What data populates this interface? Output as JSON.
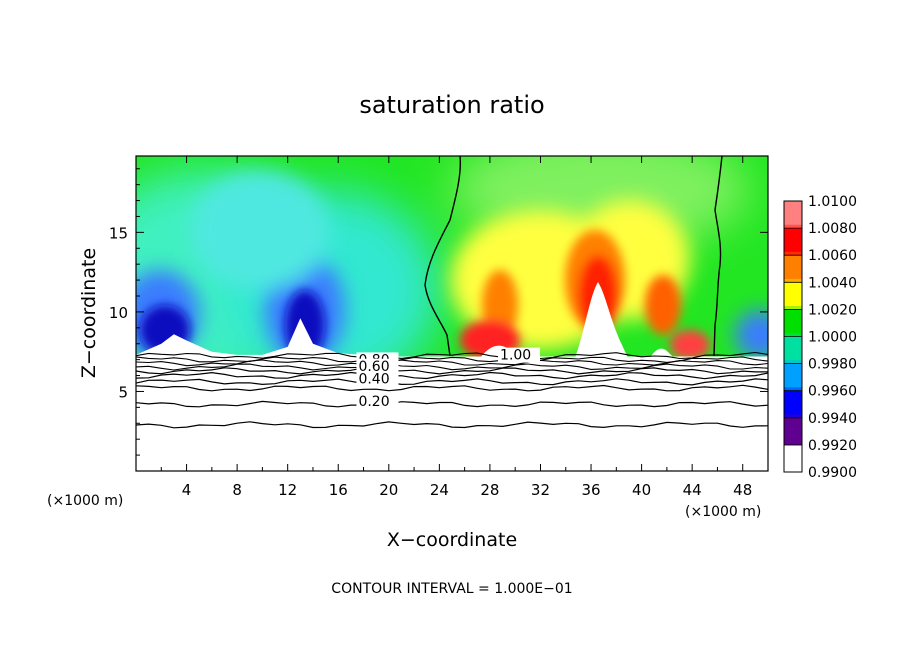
{
  "chart_data": {
    "type": "heatmap",
    "title": "saturation ratio",
    "xlabel": "X−coordinate",
    "ylabel": "Z−coordinate",
    "x_unit_left": "(×1000 m)",
    "x_unit_right": "(×1000 m)",
    "footer": "CONTOUR INTERVAL = 1.000E−01",
    "xlim": [
      0,
      50
    ],
    "ylim": [
      0,
      19.8
    ],
    "x_ticks": [
      4,
      8,
      12,
      16,
      20,
      24,
      28,
      32,
      36,
      40,
      44,
      48
    ],
    "y_ticks": [
      5,
      10,
      15
    ],
    "colorbar": {
      "min": 0.99,
      "max": 1.01,
      "labels": [
        "1.0100",
        "1.0080",
        "1.0060",
        "1.0040",
        "1.0020",
        "1.0000",
        "0.9980",
        "0.9960",
        "0.9940",
        "0.9920",
        "0.9900"
      ],
      "colors": [
        "#ff8080",
        "#ff0000",
        "#ff8000",
        "#ffff00",
        "#00e000",
        "#00e0a0",
        "#00a0ff",
        "#0000ff",
        "#600090"
      ]
    },
    "cloud_base_z": 7.2,
    "terrain_x": [
      0,
      2,
      3,
      4,
      6,
      8,
      10,
      12,
      13,
      14,
      16,
      18,
      20,
      50
    ],
    "terrain_top": [
      7.3,
      8.0,
      8.6,
      8.2,
      7.5,
      7.3,
      7.3,
      7.8,
      9.6,
      8.0,
      7.4,
      7.3,
      7.2,
      7.2
    ],
    "contour_labels": [
      {
        "text": "1.00",
        "x": 28.8,
        "z": 7.0
      },
      {
        "text": "0.80",
        "x": 17.6,
        "z": 6.7
      },
      {
        "text": "0.60",
        "x": 17.6,
        "z": 6.3
      },
      {
        "text": "0.40",
        "x": 17.6,
        "z": 5.5
      },
      {
        "text": "0.20",
        "x": 17.6,
        "z": 4.1
      }
    ],
    "contour_levels_z": [
      7.25,
      7.0,
      6.8,
      6.55,
      6.3,
      6.0,
      5.6,
      5.2,
      4.2,
      2.9
    ]
  }
}
